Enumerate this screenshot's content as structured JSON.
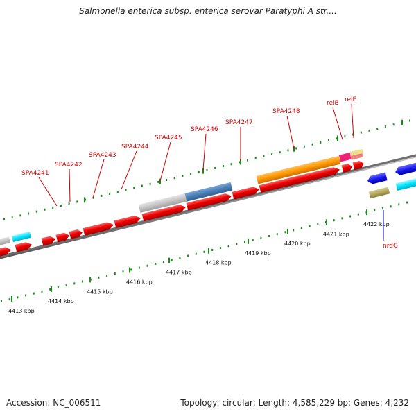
{
  "title": "Salmonella enterica subsp. enterica serovar Paratyphi A str....",
  "accession": "Accession: NC_006511",
  "summary": "Topology: circular; Length: 4,585,229 bp; Genes: 4,232",
  "gene_labels": [
    {
      "text": "SPA4241",
      "color": "#cc0000"
    },
    {
      "text": "SPA4242",
      "color": "#cc0000"
    },
    {
      "text": "SPA4243",
      "color": "#cc0000"
    },
    {
      "text": "SPA4244",
      "color": "#cc0000"
    },
    {
      "text": "SPA4245",
      "color": "#cc0000"
    },
    {
      "text": "SPA4246",
      "color": "#cc0000"
    },
    {
      "text": "SPA4247",
      "color": "#cc0000"
    },
    {
      "text": "SPA4248",
      "color": "#cc0000"
    },
    {
      "text": "relB",
      "color": "#cc0000"
    },
    {
      "text": "relE",
      "color": "#cc0000"
    },
    {
      "text": "nrdG",
      "color": "#0000cc"
    }
  ],
  "ticks": [
    "4413 kbp",
    "4414 kbp",
    "4415 kbp",
    "4416 kbp",
    "4417 kbp",
    "4418 kbp",
    "4419 kbp",
    "4420 kbp",
    "4421 kbp",
    "4422 kbp"
  ],
  "colors": {
    "gene_red": "#ee0000",
    "backbone": "#808080",
    "tick_green": "#1a8c1a",
    "orange": "#ff9900",
    "steelblue": "#4a7fb5",
    "gray_feature": "#c0c0c0",
    "cyan": "#00e5ff",
    "blue": "#1a1aee",
    "olive": "#b5a860",
    "magenta": "#ee2277",
    "pink": "#f08080",
    "khaki": "#eee08a"
  }
}
